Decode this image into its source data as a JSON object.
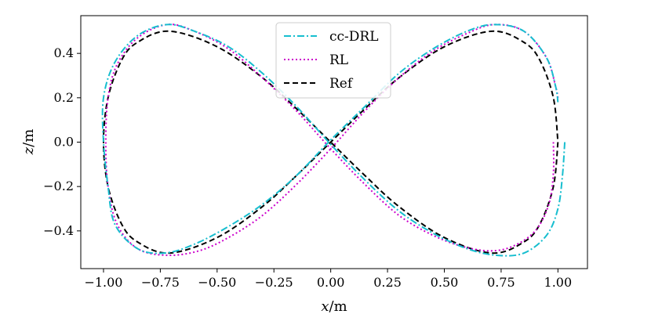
{
  "chart_data": {
    "type": "line",
    "title": "",
    "xlabel_var": "x",
    "xlabel_unit": "/m",
    "ylabel_var": "z",
    "ylabel_unit": "/m",
    "xlim": [
      -1.1,
      1.13
    ],
    "ylim": [
      -0.57,
      0.57
    ],
    "xticks": [
      -1.0,
      -0.75,
      -0.5,
      -0.25,
      0.0,
      0.25,
      0.5,
      0.75,
      1.0
    ],
    "xtick_labels": [
      "−1.00",
      "−0.75",
      "−0.50",
      "−0.25",
      "0.00",
      "0.25",
      "0.50",
      "0.75",
      "1.00"
    ],
    "yticks": [
      -0.4,
      -0.2,
      0.0,
      0.2,
      0.4
    ],
    "ytick_labels": [
      "−0.4",
      "−0.2",
      "0.0",
      "0.2",
      "0.4"
    ],
    "grid": false,
    "legend_position": "top-center",
    "series": [
      {
        "name": "cc-DRL",
        "color": "#17becf",
        "style": "dashdot",
        "x": [
          1.03,
          1.02,
          1.0,
          0.95,
          0.85,
          0.73,
          0.6,
          0.45,
          0.3,
          0.15,
          0.0,
          -0.15,
          -0.3,
          -0.45,
          -0.6,
          -0.72,
          -0.85,
          -0.95,
          -1.0,
          -1.0,
          -0.98,
          -0.95,
          -0.85,
          -0.73,
          -0.6,
          -0.45,
          -0.3,
          -0.15,
          0.0,
          0.15,
          0.3,
          0.45,
          0.6,
          0.72,
          0.85,
          0.95,
          0.99,
          1.0
        ],
        "y": [
          0.0,
          -0.15,
          -0.3,
          -0.42,
          -0.5,
          -0.51,
          -0.48,
          -0.41,
          -0.31,
          -0.17,
          -0.01,
          0.16,
          0.31,
          0.43,
          0.5,
          0.53,
          0.48,
          0.36,
          0.2,
          0.0,
          -0.2,
          -0.37,
          -0.48,
          -0.5,
          -0.46,
          -0.38,
          -0.28,
          -0.15,
          0.01,
          0.16,
          0.31,
          0.42,
          0.5,
          0.53,
          0.5,
          0.38,
          0.25,
          0.18
        ]
      },
      {
        "name": "RL",
        "color": "#cc00cc",
        "style": "dotted",
        "x": [
          0.98,
          0.98,
          0.96,
          0.9,
          0.8,
          0.7,
          0.58,
          0.45,
          0.3,
          0.15,
          0.0,
          -0.15,
          -0.3,
          -0.45,
          -0.6,
          -0.72,
          -0.85,
          -0.94,
          -0.98,
          -0.99,
          -0.98,
          -0.94,
          -0.85,
          -0.72,
          -0.58,
          -0.45,
          -0.3,
          -0.15,
          0.0,
          0.15,
          0.3,
          0.45,
          0.6,
          0.72,
          0.85,
          0.95,
          0.99,
          1.0
        ],
        "y": [
          0.0,
          -0.14,
          -0.28,
          -0.4,
          -0.47,
          -0.49,
          -0.47,
          -0.42,
          -0.33,
          -0.19,
          -0.03,
          0.14,
          0.29,
          0.42,
          0.5,
          0.53,
          0.47,
          0.35,
          0.2,
          0.0,
          -0.2,
          -0.37,
          -0.48,
          -0.51,
          -0.49,
          -0.43,
          -0.33,
          -0.19,
          -0.03,
          0.14,
          0.29,
          0.41,
          0.49,
          0.53,
          0.5,
          0.38,
          0.25,
          0.2
        ]
      },
      {
        "name": "Ref",
        "color": "#000000",
        "style": "dashed",
        "x": [
          1.0,
          0.98,
          0.92,
          0.85,
          0.71,
          0.5,
          0.3,
          0.15,
          0.0,
          -0.15,
          -0.3,
          -0.5,
          -0.71,
          -0.85,
          -0.92,
          -0.98,
          -1.0,
          -0.98,
          -0.92,
          -0.85,
          -0.71,
          -0.5,
          -0.3,
          -0.15,
          0.0,
          0.15,
          0.3,
          0.5,
          0.71,
          0.85,
          0.92,
          0.98,
          1.0
        ],
        "y": [
          0.0,
          -0.2,
          -0.37,
          -0.45,
          -0.5,
          -0.43,
          -0.29,
          -0.15,
          0.0,
          0.15,
          0.29,
          0.43,
          0.5,
          0.45,
          0.37,
          0.2,
          0.0,
          -0.2,
          -0.37,
          -0.45,
          -0.5,
          -0.43,
          -0.29,
          -0.15,
          0.0,
          0.15,
          0.29,
          0.43,
          0.5,
          0.45,
          0.37,
          0.2,
          0.0
        ]
      }
    ]
  }
}
